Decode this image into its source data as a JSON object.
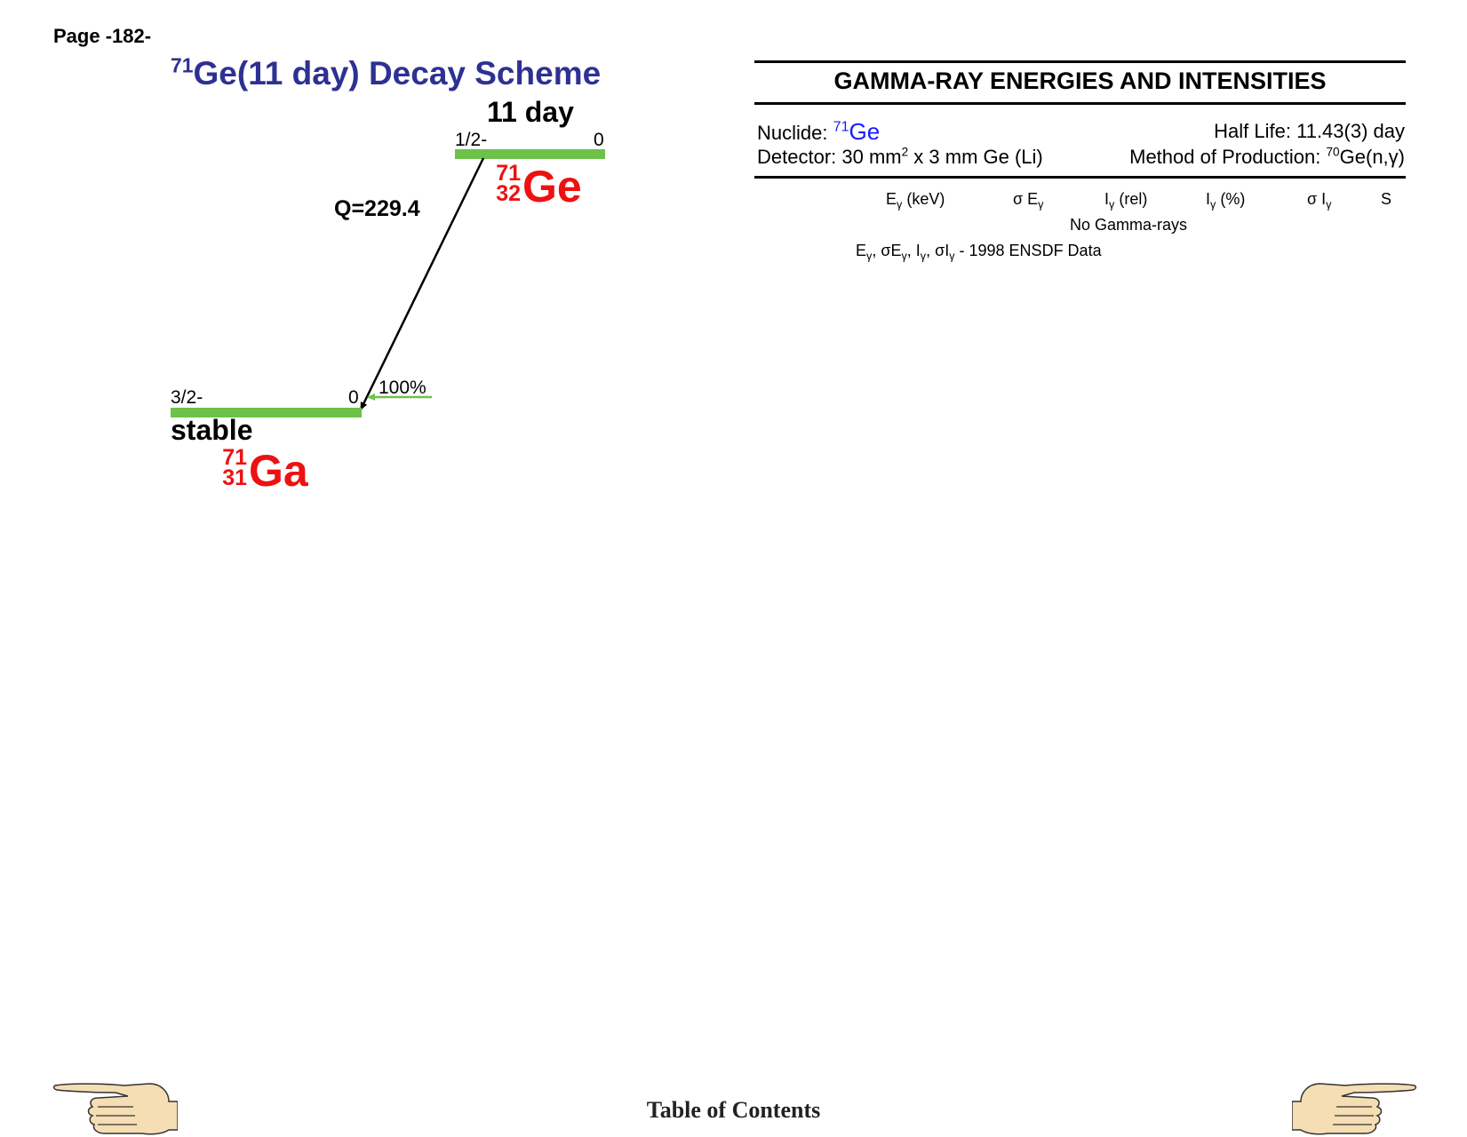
{
  "page": {
    "label": "Page -182-"
  },
  "scheme": {
    "title_mass": "71",
    "title_text": "Ge(11 day) Decay Scheme",
    "q_value": "Q=229.4",
    "parent": {
      "half_life": "11 day",
      "spin": "1/2-",
      "energy": "0",
      "mass": "71",
      "z": "32",
      "symbol": "Ge"
    },
    "daughter": {
      "status": "stable",
      "spin": "3/2-",
      "energy": "0",
      "mass": "71",
      "z": "31",
      "symbol": "Ga"
    },
    "branch": "100%",
    "colors": {
      "level": "#6cc24a",
      "nuclide": "#ee1111",
      "title": "#2e3192"
    }
  },
  "gamma_panel": {
    "title": "GAMMA-RAY ENERGIES AND INTENSITIES",
    "nuclide_label": "Nuclide:",
    "nuclide_mass": "71",
    "nuclide_symbol": "Ge",
    "half_life": "Half Life: 11.43(3) day",
    "detector_prefix": "Detector: 30 mm",
    "detector_exp": "2",
    "detector_suffix": "  x 3 mm Ge (Li)",
    "production_prefix": "Method of Production: ",
    "production_mass": "70",
    "production_reaction": "Ge(n,γ)",
    "columns": [
      "E",
      "(keV)",
      "σ E",
      "I",
      "(rel)",
      "I",
      "(%)",
      "σ I",
      "S"
    ],
    "gamma_sub": "γ",
    "no_gamma": "No Gamma-rays",
    "source_symbols": "E",
    "source_text": " - 1998 ENSDF Data"
  },
  "footer": {
    "toc": "Table of Contents"
  }
}
